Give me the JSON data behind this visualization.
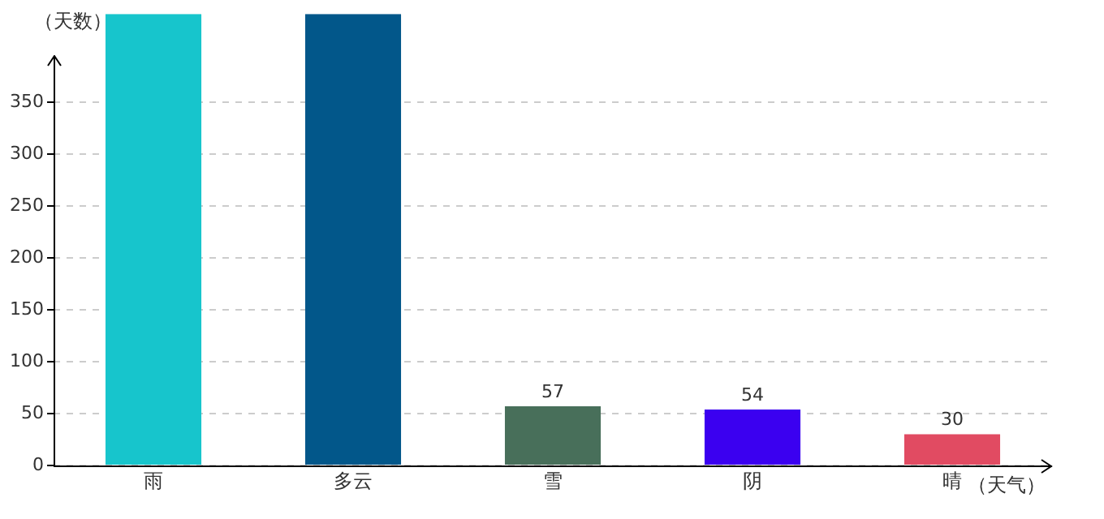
{
  "chart_data": {
    "type": "bar",
    "ylabel": "（天数）",
    "xlabel": "（天气）",
    "categories": [
      "雨",
      "多云",
      "雪",
      "阴",
      "晴"
    ],
    "values": [
      435,
      435,
      57,
      54,
      30
    ],
    "colors": [
      "#17c5cc",
      "#02578a",
      "#486f5a",
      "#3b00f0",
      "#e14b62"
    ],
    "value_labels": [
      null,
      null,
      "57",
      "54",
      "30"
    ],
    "ylim": [
      0,
      435
    ],
    "yticks": [
      0,
      50,
      100,
      150,
      200,
      250,
      300,
      350
    ],
    "grid": "y",
    "legend": false
  }
}
